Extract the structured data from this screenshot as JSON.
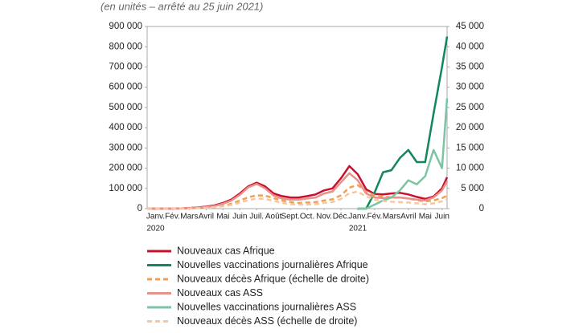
{
  "chart_data": {
    "type": "line",
    "subtitle": "(en unités – arrêté au 25 juin 2021)",
    "x": [
      0,
      0.5,
      1,
      1.5,
      2,
      2.5,
      3,
      3.5,
      4,
      4.5,
      5,
      5.5,
      6,
      6.5,
      7,
      7.5,
      8,
      8.5,
      9,
      9.5,
      10,
      10.5,
      11,
      11.5,
      12,
      12.5,
      13,
      13.5,
      14,
      14.5,
      15,
      15.5,
      16,
      16.5,
      17,
      17.5,
      17.8
    ],
    "xlim": [
      0,
      17.8
    ],
    "xticks": [
      {
        "value": 0.5,
        "label": "Janv."
      },
      {
        "value": 1.5,
        "label": "Fév."
      },
      {
        "value": 2.5,
        "label": "Mars"
      },
      {
        "value": 3.5,
        "label": "Avril"
      },
      {
        "value": 4.5,
        "label": "Mai"
      },
      {
        "value": 5.5,
        "label": "Juin"
      },
      {
        "value": 6.5,
        "label": "Juil."
      },
      {
        "value": 7.5,
        "label": "Août"
      },
      {
        "value": 8.5,
        "label": "Sept."
      },
      {
        "value": 9.5,
        "label": "Oct."
      },
      {
        "value": 10.5,
        "label": "Nov."
      },
      {
        "value": 11.5,
        "label": "Déc."
      },
      {
        "value": 12.5,
        "label": "Janv."
      },
      {
        "value": 13.5,
        "label": "Fév."
      },
      {
        "value": 14.5,
        "label": "Mars"
      },
      {
        "value": 15.5,
        "label": "Avril"
      },
      {
        "value": 16.5,
        "label": "Mai"
      },
      {
        "value": 17.5,
        "label": "Juin"
      }
    ],
    "x_year_labels": [
      {
        "value": 0.5,
        "label": "2020"
      },
      {
        "value": 12.5,
        "label": "2021"
      }
    ],
    "ylim": [
      0,
      900000
    ],
    "yticks": [
      0,
      {
        "value": 100000,
        "label": "100 000"
      },
      {
        "value": 200000,
        "label": "200 000"
      },
      {
        "value": 300000,
        "label": "300 000"
      },
      {
        "value": 400000,
        "label": "400 000"
      },
      {
        "value": 500000,
        "label": "500 000"
      },
      {
        "value": 600000,
        "label": "600 000"
      },
      {
        "value": 700000,
        "label": "700 000"
      },
      {
        "value": 800000,
        "label": "800 000"
      },
      {
        "value": 900000,
        "label": "900 000"
      }
    ],
    "y2lim": [
      0,
      45000
    ],
    "y2ticks": [
      0,
      {
        "value": 5000,
        "label": "5 000"
      },
      {
        "value": 10000,
        "label": "10 000"
      },
      {
        "value": 15000,
        "label": "15 000"
      },
      {
        "value": 20000,
        "label": "20 000"
      },
      {
        "value": 25000,
        "label": "25 000"
      },
      {
        "value": 30000,
        "label": "30 000"
      },
      {
        "value": 35000,
        "label": "35 000"
      },
      {
        "value": 40000,
        "label": "40 000"
      },
      {
        "value": 45000,
        "label": "45 000"
      }
    ],
    "series": [
      {
        "name": "Nouveaux cas Afrique",
        "color": "#c8102e",
        "dashed": false,
        "values": [
          0,
          0,
          0,
          0,
          1000,
          3000,
          6000,
          10000,
          16000,
          28000,
          45000,
          75000,
          110000,
          128000,
          110000,
          75000,
          62000,
          55000,
          55000,
          62000,
          70000,
          90000,
          100000,
          150000,
          210000,
          170000,
          95000,
          72000,
          70000,
          75000,
          78000,
          70000,
          58000,
          48000,
          60000,
          100000,
          155000
        ]
      },
      {
        "name": "Nouvelles vaccinations journalières Afrique",
        "color": "#11875a",
        "dashed": false,
        "values": [
          null,
          null,
          null,
          null,
          null,
          null,
          null,
          null,
          null,
          null,
          null,
          null,
          null,
          null,
          null,
          null,
          null,
          null,
          null,
          null,
          null,
          null,
          null,
          null,
          null,
          0,
          0,
          80000,
          180000,
          190000,
          250000,
          290000,
          230000,
          230000,
          470000,
          700000,
          850000
        ]
      },
      {
        "name": "Nouveaux décès Afrique (échelle de droite)",
        "color": "#f0a050",
        "dashed": true,
        "axis": "y2",
        "values": [
          0,
          0,
          0,
          0,
          0,
          50,
          150,
          300,
          500,
          800,
          1200,
          2000,
          2800,
          3300,
          3200,
          2600,
          2000,
          1600,
          1400,
          1500,
          1600,
          2000,
          2300,
          3300,
          5200,
          5800,
          4200,
          3300,
          3000,
          2800,
          2700,
          2500,
          2100,
          1800,
          2000,
          2600,
          3200
        ]
      },
      {
        "name": "Nouveaux cas ASS",
        "color": "#e8908a",
        "dashed": false,
        "values": [
          0,
          0,
          0,
          0,
          800,
          2500,
          5000,
          8000,
          13000,
          24000,
          40000,
          68000,
          105000,
          122000,
          100000,
          65000,
          50000,
          45000,
          45000,
          50000,
          55000,
          75000,
          85000,
          130000,
          175000,
          140000,
          75000,
          55000,
          52000,
          55000,
          55000,
          50000,
          45000,
          40000,
          55000,
          90000,
          135000
        ]
      },
      {
        "name": "Nouvelles vaccinations journalières ASS",
        "color": "#7cc4a4",
        "dashed": false,
        "values": [
          null,
          null,
          null,
          null,
          null,
          null,
          null,
          null,
          null,
          null,
          null,
          null,
          null,
          null,
          null,
          null,
          null,
          null,
          null,
          null,
          null,
          null,
          null,
          null,
          null,
          0,
          0,
          20000,
          40000,
          55000,
          90000,
          140000,
          120000,
          160000,
          290000,
          200000,
          545000
        ]
      },
      {
        "name": "Nouveaux décès ASS (échelle de droite)",
        "color": "#f7c8a0",
        "dashed": true,
        "axis": "y2",
        "values": [
          0,
          0,
          0,
          0,
          0,
          30,
          100,
          200,
          350,
          600,
          900,
          1500,
          2100,
          2500,
          2400,
          1900,
          1400,
          1100,
          1000,
          1000,
          1100,
          1400,
          1600,
          2400,
          3800,
          4200,
          3000,
          2200,
          1900,
          1700,
          1600,
          1500,
          1300,
          1100,
          1300,
          1800,
          2300
        ]
      }
    ]
  }
}
